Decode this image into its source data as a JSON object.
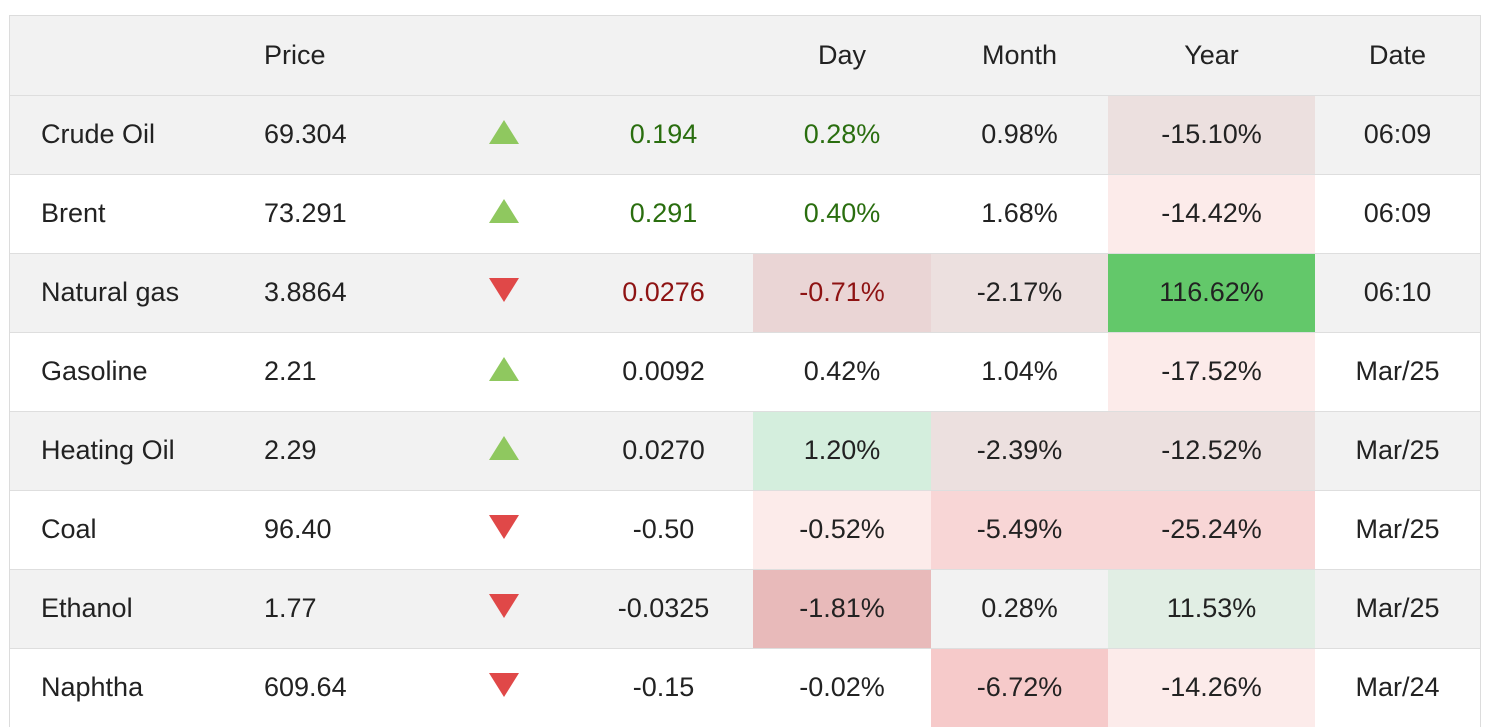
{
  "header": {
    "name": "",
    "price": "Price",
    "arrow": "",
    "change": "",
    "day": "Day",
    "month": "Month",
    "year": "Year",
    "date": "Date"
  },
  "rows": [
    {
      "name": "Crude Oil",
      "price": "69.304",
      "direction": "up",
      "change": "0.194",
      "change_color": "pos",
      "day": "0.28%",
      "day_color": "pos",
      "day_bg": "",
      "month": "0.98%",
      "month_bg": "",
      "year": "-15.10%",
      "year_bg": "#ece0df",
      "date": "06:09"
    },
    {
      "name": "Brent",
      "price": "73.291",
      "direction": "up",
      "change": "0.291",
      "change_color": "pos",
      "day": "0.40%",
      "day_color": "pos",
      "day_bg": "",
      "month": "1.68%",
      "month_bg": "",
      "year": "-14.42%",
      "year_bg": "#fcebea",
      "date": "06:09"
    },
    {
      "name": "Natural gas",
      "price": "3.8864",
      "direction": "down",
      "change": "0.0276",
      "change_color": "neg",
      "day": "-0.71%",
      "day_color": "neg",
      "day_bg": "#ead5d5",
      "month": "-2.17%",
      "month_bg": "#ece0df",
      "year": "116.62%",
      "year_bg": "#63c86a",
      "date": "06:10"
    },
    {
      "name": "Gasoline",
      "price": "2.21",
      "direction": "up",
      "change": "0.0092",
      "change_color": "",
      "day": "0.42%",
      "day_color": "",
      "day_bg": "",
      "month": "1.04%",
      "month_bg": "",
      "year": "-17.52%",
      "year_bg": "#fcebea",
      "date": "Mar/25"
    },
    {
      "name": "Heating Oil",
      "price": "2.29",
      "direction": "up",
      "change": "0.0270",
      "change_color": "",
      "day": "1.20%",
      "day_color": "",
      "day_bg": "#d4eedd",
      "month": "-2.39%",
      "month_bg": "#ece0df",
      "year": "-12.52%",
      "year_bg": "#ece0df",
      "date": "Mar/25"
    },
    {
      "name": "Coal",
      "price": "96.40",
      "direction": "down",
      "change": "-0.50",
      "change_color": "",
      "day": "-0.52%",
      "day_color": "",
      "day_bg": "#fcebea",
      "month": "-5.49%",
      "month_bg": "#f8d6d6",
      "year": "-25.24%",
      "year_bg": "#f8d6d6",
      "date": "Mar/25"
    },
    {
      "name": "Ethanol",
      "price": "1.77",
      "direction": "down",
      "change": "-0.0325",
      "change_color": "",
      "day": "-1.81%",
      "day_color": "",
      "day_bg": "#e8baba",
      "month": "0.28%",
      "month_bg": "",
      "year": "11.53%",
      "year_bg": "#e1eee4",
      "date": "Mar/25"
    },
    {
      "name": "Naphtha",
      "price": "609.64",
      "direction": "down",
      "change": "-0.15",
      "change_color": "",
      "day": "-0.02%",
      "day_color": "",
      "day_bg": "",
      "month": "-6.72%",
      "month_bg": "#f6caca",
      "year": "-14.26%",
      "year_bg": "#fcebea",
      "date": "Mar/24"
    }
  ]
}
